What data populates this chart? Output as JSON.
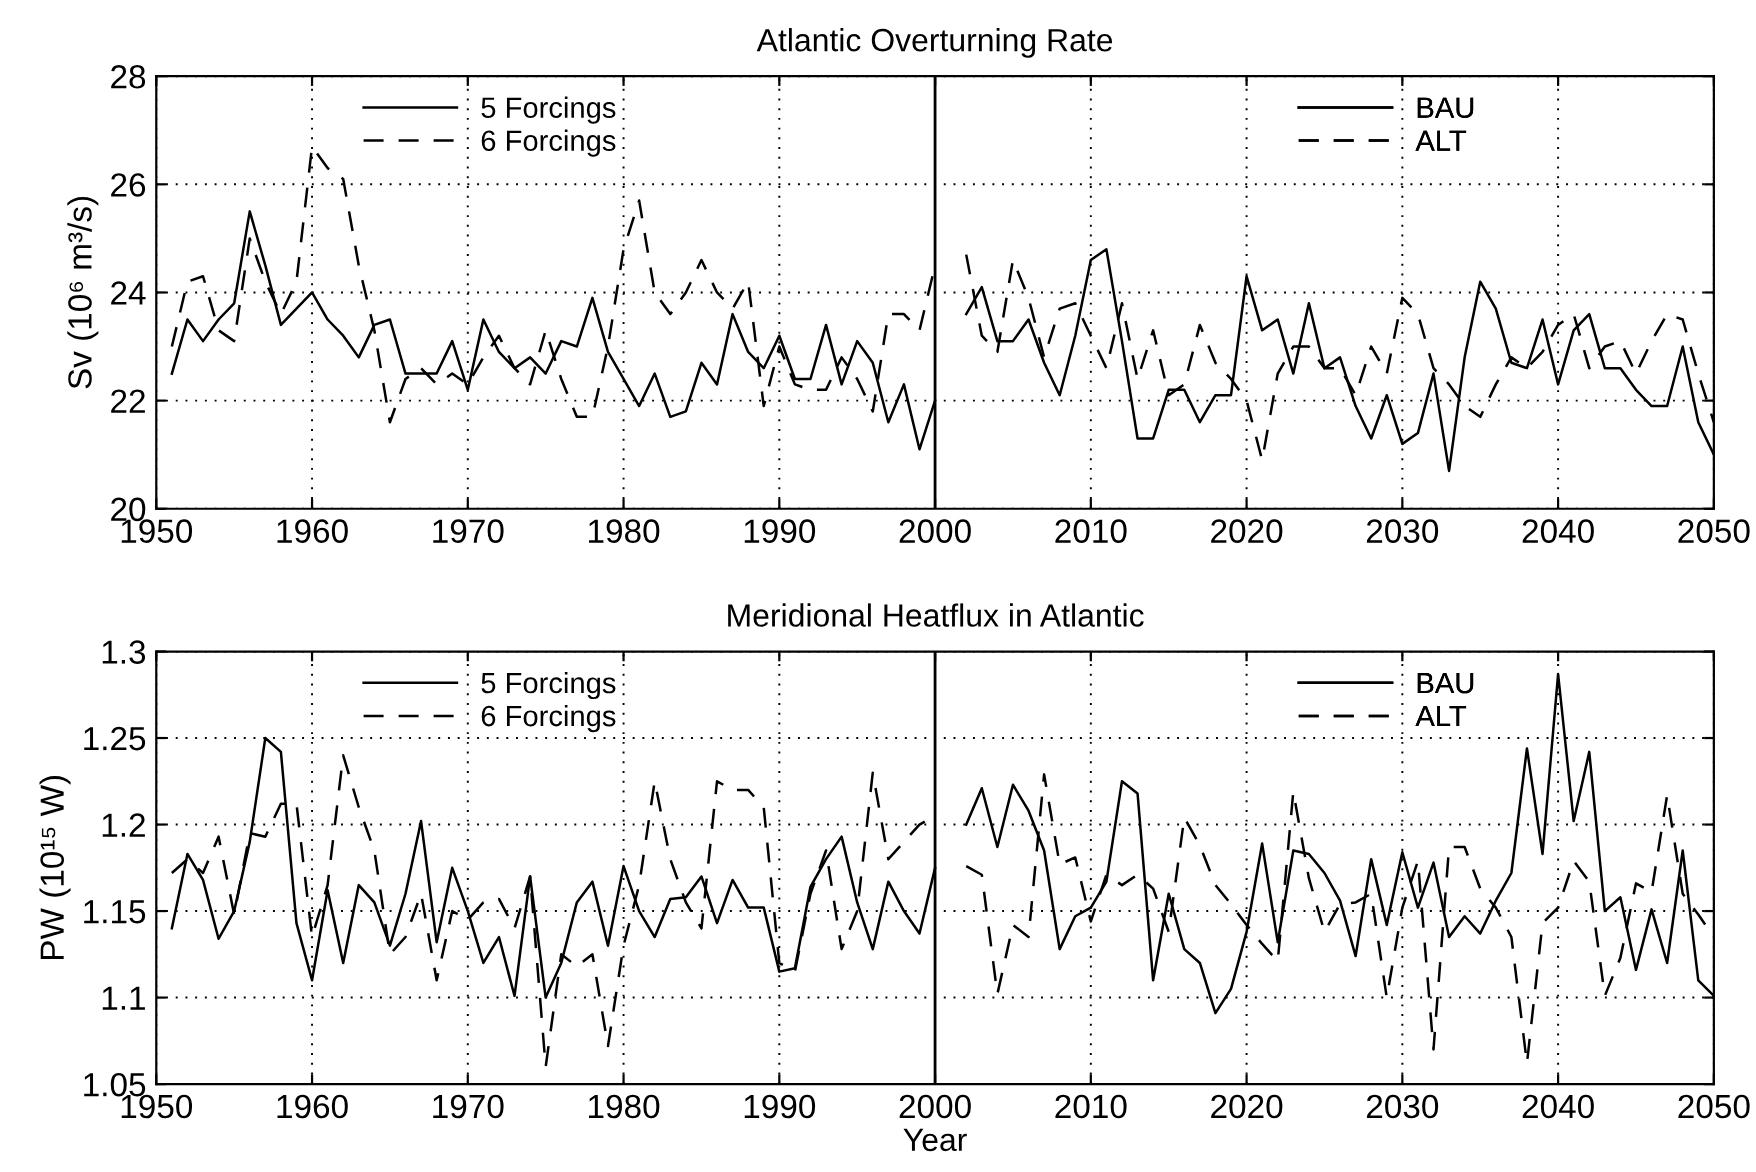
{
  "chart_data": [
    {
      "type": "line",
      "title": "Atlantic Overturning Rate",
      "ylabel": "Sv (10⁶ m³/s)",
      "xlim": [
        1950,
        2050
      ],
      "xticks": [
        1950,
        1960,
        1970,
        1980,
        1990,
        2000,
        2010,
        2020,
        2030,
        2040,
        2050
      ],
      "ylim": [
        20,
        28
      ],
      "yticks": [
        20,
        22,
        24,
        26,
        28
      ],
      "grid": true,
      "legend": "top",
      "marker": "none",
      "ref_lines": [
        {
          "axis": "x",
          "value": 2000,
          "color": "#000000",
          "line_style": "solid"
        }
      ],
      "series": [
        {
          "name": "5 Forcings",
          "color": "#000000",
          "line_style": "solid",
          "x": [
            1951,
            1952,
            1953,
            1954,
            1955,
            1956,
            1957,
            1958,
            1959,
            1960,
            1961,
            1962,
            1963,
            1964,
            1965,
            1966,
            1967,
            1968,
            1969,
            1970,
            1971,
            1972,
            1973,
            1974,
            1975,
            1976,
            1977,
            1978,
            1979,
            1980,
            1981,
            1982,
            1983,
            1984,
            1985,
            1986,
            1987,
            1988,
            1989,
            1990,
            1991,
            1992,
            1993,
            1994,
            1995,
            1996,
            1997,
            1998,
            1999,
            2000
          ],
          "values": [
            22.5,
            23.5,
            23.1,
            23.5,
            23.8,
            25.5,
            24.5,
            23.4,
            23.7,
            24.0,
            23.5,
            23.2,
            22.8,
            23.4,
            23.5,
            22.5,
            22.5,
            22.5,
            23.1,
            22.2,
            23.5,
            22.9,
            22.6,
            22.8,
            22.5,
            23.1,
            23.0,
            23.9,
            22.9,
            22.4,
            21.9,
            22.5,
            21.7,
            21.8,
            22.7,
            22.3,
            23.6,
            22.9,
            22.6,
            23.2,
            22.4,
            22.4,
            23.4,
            22.3,
            23.1,
            22.7,
            21.6,
            22.3,
            21.1,
            22.0
          ]
        },
        {
          "name": "6 Forcings",
          "color": "#000000",
          "line_style": "dashed",
          "x": [
            1951,
            1952,
            1953,
            1954,
            1955,
            1956,
            1957,
            1958,
            1959,
            1960,
            1961,
            1962,
            1963,
            1964,
            1965,
            1966,
            1967,
            1968,
            1969,
            1970,
            1971,
            1972,
            1973,
            1974,
            1975,
            1976,
            1977,
            1978,
            1979,
            1980,
            1981,
            1982,
            1983,
            1984,
            1985,
            1986,
            1987,
            1988,
            1989,
            1990,
            1991,
            1992,
            1993,
            1994,
            1995,
            1996,
            1997,
            1998,
            1999,
            2000
          ],
          "values": [
            23.0,
            24.2,
            24.3,
            23.3,
            23.1,
            25.0,
            24.2,
            23.6,
            24.2,
            26.7,
            26.3,
            26.1,
            24.5,
            23.3,
            21.6,
            22.4,
            22.6,
            22.3,
            22.5,
            22.3,
            22.8,
            23.2,
            22.6,
            22.3,
            23.3,
            22.4,
            21.7,
            21.7,
            23.0,
            24.8,
            25.7,
            24.0,
            23.6,
            24.0,
            24.6,
            24.0,
            23.7,
            24.2,
            21.9,
            23.0,
            22.3,
            22.2,
            22.2,
            22.8,
            22.4,
            21.8,
            23.6,
            23.6,
            23.3,
            24.5
          ]
        },
        {
          "name": "BAU",
          "color": "#000000",
          "line_style": "solid",
          "x": [
            2002,
            2003,
            2004,
            2005,
            2006,
            2007,
            2008,
            2009,
            2010,
            2011,
            2012,
            2013,
            2014,
            2015,
            2016,
            2017,
            2018,
            2019,
            2020,
            2021,
            2022,
            2023,
            2024,
            2025,
            2026,
            2027,
            2028,
            2029,
            2030,
            2031,
            2032,
            2033,
            2034,
            2035,
            2036,
            2037,
            2038,
            2039,
            2040,
            2041,
            2042,
            2043,
            2044,
            2045,
            2046,
            2047,
            2048,
            2049,
            2050
          ],
          "values": [
            23.6,
            24.1,
            23.1,
            23.1,
            23.5,
            22.7,
            22.1,
            23.2,
            24.6,
            24.8,
            23.1,
            21.3,
            21.3,
            22.2,
            22.2,
            21.6,
            22.1,
            22.1,
            24.3,
            23.3,
            23.5,
            22.5,
            23.8,
            22.6,
            22.8,
            21.9,
            21.3,
            22.1,
            21.2,
            21.4,
            22.5,
            20.7,
            22.8,
            24.2,
            23.7,
            22.7,
            22.6,
            23.5,
            22.3,
            23.3,
            23.6,
            22.6,
            22.6,
            22.2,
            21.9,
            21.9,
            23.0,
            21.6,
            21.0
          ]
        },
        {
          "name": "ALT",
          "color": "#000000",
          "line_style": "dashed",
          "x": [
            2002,
            2003,
            2004,
            2005,
            2006,
            2007,
            2008,
            2009,
            2010,
            2011,
            2012,
            2013,
            2014,
            2015,
            2016,
            2017,
            2018,
            2019,
            2020,
            2021,
            2022,
            2023,
            2024,
            2025,
            2026,
            2027,
            2028,
            2029,
            2030,
            2031,
            2032,
            2033,
            2034,
            2035,
            2036,
            2037,
            2038,
            2039,
            2040,
            2041,
            2042,
            2043,
            2044,
            2045,
            2046,
            2047,
            2048,
            2049,
            2050
          ],
          "values": [
            24.7,
            23.2,
            22.9,
            24.6,
            23.9,
            22.8,
            23.7,
            23.8,
            23.2,
            22.6,
            23.8,
            22.4,
            23.3,
            22.1,
            22.3,
            23.4,
            22.7,
            22.4,
            22.0,
            20.9,
            22.5,
            23.0,
            23.0,
            22.6,
            22.6,
            22.1,
            23.0,
            22.5,
            23.9,
            23.6,
            22.6,
            22.3,
            21.9,
            21.7,
            22.3,
            22.8,
            22.6,
            22.9,
            23.4,
            23.6,
            22.6,
            23.0,
            23.1,
            22.5,
            23.1,
            23.6,
            23.5,
            22.5,
            21.6
          ]
        }
      ]
    },
    {
      "type": "line",
      "title": "Meridional Heatflux in Atlantic",
      "xlabel": "Year",
      "ylabel": "PW (10¹⁵ W)",
      "xlim": [
        1950,
        2050
      ],
      "xticks": [
        1950,
        1960,
        1970,
        1980,
        1990,
        2000,
        2010,
        2020,
        2030,
        2040,
        2050
      ],
      "ylim": [
        1.05,
        1.3
      ],
      "yticks": [
        1.05,
        1.1,
        1.15,
        1.2,
        1.25,
        1.3
      ],
      "grid": true,
      "legend": "top",
      "marker": "none",
      "ref_lines": [
        {
          "axis": "x",
          "value": 2000,
          "color": "#000000",
          "line_style": "solid"
        }
      ],
      "series": [
        {
          "name": "5 Forcings",
          "color": "#000000",
          "line_style": "solid",
          "x": [
            1951,
            1952,
            1953,
            1954,
            1955,
            1956,
            1957,
            1958,
            1959,
            1960,
            1961,
            1962,
            1963,
            1964,
            1965,
            1966,
            1967,
            1968,
            1969,
            1970,
            1971,
            1972,
            1973,
            1974,
            1975,
            1976,
            1977,
            1978,
            1979,
            1980,
            1981,
            1982,
            1983,
            1984,
            1985,
            1986,
            1987,
            1988,
            1989,
            1990,
            1991,
            1992,
            1993,
            1994,
            1995,
            1996,
            1997,
            1998,
            1999,
            2000
          ],
          "values": [
            1.14,
            1.183,
            1.168,
            1.134,
            1.15,
            1.19,
            1.25,
            1.242,
            1.143,
            1.11,
            1.162,
            1.12,
            1.165,
            1.155,
            1.13,
            1.16,
            1.202,
            1.132,
            1.175,
            1.15,
            1.12,
            1.135,
            1.101,
            1.17,
            1.1,
            1.12,
            1.155,
            1.167,
            1.13,
            1.176,
            1.15,
            1.135,
            1.157,
            1.158,
            1.17,
            1.143,
            1.168,
            1.152,
            1.152,
            1.115,
            1.117,
            1.164,
            1.18,
            1.193,
            1.155,
            1.128,
            1.167,
            1.15,
            1.137,
            1.175
          ]
        },
        {
          "name": "6 Forcings",
          "color": "#000000",
          "line_style": "dashed",
          "x": [
            1951,
            1952,
            1953,
            1954,
            1955,
            1956,
            1957,
            1958,
            1959,
            1960,
            1961,
            1962,
            1963,
            1964,
            1965,
            1966,
            1967,
            1968,
            1969,
            1970,
            1971,
            1972,
            1973,
            1974,
            1975,
            1976,
            1977,
            1978,
            1979,
            1980,
            1981,
            1982,
            1983,
            1984,
            1985,
            1986,
            1987,
            1988,
            1989,
            1990,
            1991,
            1992,
            1993,
            1994,
            1995,
            1996,
            1997,
            1998,
            1999,
            2000
          ],
          "values": [
            1.172,
            1.18,
            1.172,
            1.193,
            1.148,
            1.195,
            1.193,
            1.212,
            1.212,
            1.135,
            1.165,
            1.24,
            1.21,
            1.185,
            1.125,
            1.135,
            1.16,
            1.11,
            1.15,
            1.145,
            1.155,
            1.157,
            1.14,
            1.17,
            1.06,
            1.125,
            1.118,
            1.125,
            1.072,
            1.13,
            1.165,
            1.225,
            1.18,
            1.155,
            1.14,
            1.225,
            1.22,
            1.22,
            1.21,
            1.12,
            1.115,
            1.16,
            1.185,
            1.128,
            1.15,
            1.23,
            1.18,
            1.19,
            1.2,
            1.205
          ]
        },
        {
          "name": "BAU",
          "color": "#000000",
          "line_style": "solid",
          "x": [
            2002,
            2003,
            2004,
            2005,
            2006,
            2007,
            2008,
            2009,
            2010,
            2011,
            2012,
            2013,
            2014,
            2015,
            2016,
            2017,
            2018,
            2019,
            2020,
            2021,
            2022,
            2023,
            2024,
            2025,
            2026,
            2027,
            2028,
            2029,
            2030,
            2031,
            2032,
            2033,
            2034,
            2035,
            2036,
            2037,
            2038,
            2039,
            2040,
            2041,
            2042,
            2043,
            2044,
            2045,
            2046,
            2047,
            2048,
            2049,
            2050
          ],
          "values": [
            1.2,
            1.221,
            1.187,
            1.223,
            1.208,
            1.185,
            1.128,
            1.147,
            1.152,
            1.167,
            1.225,
            1.218,
            1.11,
            1.16,
            1.128,
            1.12,
            1.091,
            1.105,
            1.138,
            1.189,
            1.132,
            1.185,
            1.183,
            1.172,
            1.156,
            1.124,
            1.18,
            1.142,
            1.184,
            1.152,
            1.178,
            1.135,
            1.147,
            1.137,
            1.156,
            1.172,
            1.244,
            1.183,
            1.287,
            1.202,
            1.242,
            1.15,
            1.158,
            1.116,
            1.151,
            1.12,
            1.185,
            1.11,
            1.101
          ]
        },
        {
          "name": "ALT",
          "color": "#000000",
          "line_style": "dashed",
          "x": [
            2002,
            2003,
            2004,
            2005,
            2006,
            2007,
            2008,
            2009,
            2010,
            2011,
            2012,
            2013,
            2014,
            2015,
            2016,
            2017,
            2018,
            2019,
            2020,
            2021,
            2022,
            2023,
            2024,
            2025,
            2026,
            2027,
            2028,
            2029,
            2030,
            2031,
            2032,
            2033,
            2034,
            2035,
            2036,
            2037,
            2038,
            2039,
            2040,
            2041,
            2042,
            2043,
            2044,
            2045,
            2046,
            2047,
            2048,
            2049,
            2050
          ],
          "values": [
            1.176,
            1.171,
            1.102,
            1.142,
            1.135,
            1.229,
            1.177,
            1.181,
            1.144,
            1.171,
            1.165,
            1.171,
            1.163,
            1.138,
            1.204,
            1.188,
            1.165,
            1.154,
            1.142,
            1.131,
            1.121,
            1.219,
            1.169,
            1.138,
            1.154,
            1.155,
            1.16,
            1.1,
            1.152,
            1.179,
            1.07,
            1.187,
            1.187,
            1.163,
            1.152,
            1.135,
            1.062,
            1.143,
            1.152,
            1.179,
            1.167,
            1.101,
            1.123,
            1.166,
            1.161,
            1.217,
            1.16,
            1.148,
            1.135
          ]
        }
      ]
    }
  ]
}
